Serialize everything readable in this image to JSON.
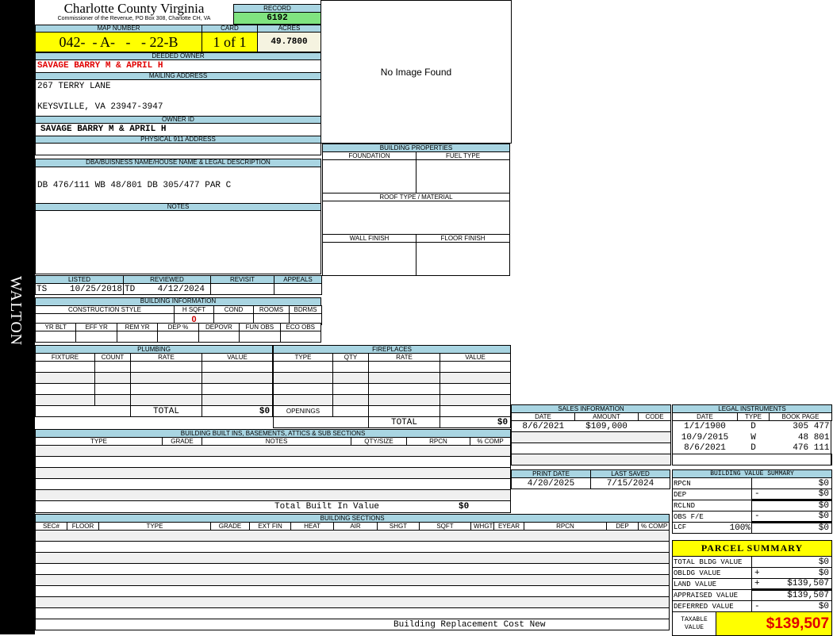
{
  "side_label": "WALTON",
  "header": {
    "title": "Charlotte County Virginia",
    "subtitle": "Commissioner of the Revenue, PO Box 308, Charlotte CH, VA",
    "record_label": "RECORD",
    "record": "6192"
  },
  "parcel": {
    "map_label": "MAP NUMBER",
    "map": "042-  - A-   -   - 22-B",
    "card_label": "CARD",
    "card": "1 of 1",
    "acres_label": "ACRES",
    "acres": "49.7800"
  },
  "owner": {
    "deeded_label": "DEEDED OWNER",
    "deeded": "SAVAGE BARRY M & APRIL H",
    "mailing_label": "MAILING ADDRESS",
    "mailing_line1": "267 TERRY LANE",
    "mailing_line2": "KEYSVILLE, VA 23947-3947",
    "owner_id_label": "OWNER ID",
    "owner_id": "SAVAGE BARRY M & APRIL H",
    "physical_label": "PHYSICAL 911 ADDRESS",
    "physical": ""
  },
  "dba": {
    "label": "DBA/BUISNESS NAME/HOUSE NAME & LEGAL DESCRIPTION",
    "value": "DB 476/111 WB 48/801 DB 305/477 PAR C"
  },
  "notes": {
    "label": "NOTES",
    "value": ""
  },
  "image": {
    "text": "No Image Found"
  },
  "review": {
    "listed_label": "LISTED",
    "listed_by": "TS",
    "listed": "10/25/2018",
    "reviewed_label": "REVIEWED",
    "reviewed_by": "TD",
    "reviewed": "4/12/2024",
    "revisit_label": "REVISIT",
    "appeals_label": "APPEALS"
  },
  "building_info": {
    "label": "BUILDING INFORMATION",
    "h1": [
      "CONSTRUCTION STYLE",
      "H SQFT",
      "COND",
      "ROOMS",
      "BDRMS"
    ],
    "hsqft": "0",
    "h2": [
      "YR BLT",
      "EFF YR",
      "REM YR",
      "DEP %",
      "DEPOVR",
      "FUN OBS",
      "ECO OBS"
    ]
  },
  "building_properties": {
    "label": "BUILDING PROPERTIES",
    "foundation": "FOUNDATION",
    "fuel": "FUEL TYPE",
    "roof": "ROOF TYPE / MATERIAL",
    "wall": "WALL FINISH",
    "floor": "FLOOR FINISH"
  },
  "plumbing": {
    "label": "PLUMBING",
    "cols": [
      "FIXTURE",
      "COUNT",
      "RATE",
      "VALUE"
    ],
    "total_label": "TOTAL",
    "total": "$0"
  },
  "fireplaces": {
    "label": "FIREPLACES",
    "cols": [
      "TYPE",
      "QTY",
      "RATE",
      "VALUE"
    ],
    "openings_label": "OPENINGS",
    "total_label": "TOTAL",
    "total": "$0"
  },
  "built_ins": {
    "label": "BUILDING BUILT INS, BASEMENTS, ATTICS & SUB SECTIONS",
    "cols": [
      "TYPE",
      "GRADE",
      "NOTES",
      "QTY/SIZE",
      "RPCN",
      "% COMP"
    ],
    "total_label": "Total Built In Value",
    "total": "$0"
  },
  "sections": {
    "label": "BUILDING SECTIONS",
    "cols": [
      "SEC#",
      "FLOOR",
      "TYPE",
      "GRADE",
      "EXT FIN",
      "HEAT",
      "AIR",
      "SHGT",
      "SQFT",
      "WHGT",
      "EYEAR",
      "RPCN",
      "DEP",
      "% COMP"
    ],
    "footer": "Building Replacement Cost New"
  },
  "sales": {
    "label": "SALES INFORMATION",
    "cols": [
      "DATE",
      "AMOUNT",
      "CODE"
    ],
    "rows": [
      {
        "date": "8/6/2021",
        "amount": "$109,000",
        "code": ""
      }
    ]
  },
  "legal": {
    "label": "LEGAL INSTRUMENTS",
    "cols": [
      "DATE",
      "TYPE",
      "BOOK PAGE"
    ],
    "rows": [
      {
        "date": "1/1/1900",
        "type": "D",
        "book": "305",
        "page": "477"
      },
      {
        "date": "10/9/2015",
        "type": "W",
        "book": "48",
        "page": "801"
      },
      {
        "date": "8/6/2021",
        "type": "D",
        "book": "476",
        "page": "111"
      }
    ]
  },
  "dates": {
    "print_label": "PRINT DATE",
    "print": "4/20/2025",
    "saved_label": "LAST SAVED",
    "saved": "7/15/2024"
  },
  "bvs": {
    "label": "BUILDING VALUE SUMMARY",
    "rows": [
      {
        "name": "RPCN",
        "sign": "",
        "value": "$0"
      },
      {
        "name": "DEP",
        "sign": "-",
        "value": "$0"
      },
      {
        "name": "RCLND",
        "sign": "",
        "value": "$0"
      },
      {
        "name": "OBS F/E",
        "sign": "-",
        "value": "$0"
      },
      {
        "name": "LCF",
        "pct": "100%",
        "sign": "",
        "value": "$0"
      }
    ]
  },
  "summary": {
    "label": "PARCEL SUMMARY",
    "rows": [
      {
        "name": "TOTAL BLDG VALUE",
        "sign": "",
        "value": "$0"
      },
      {
        "name": "OBLDG VALUE",
        "sign": "+",
        "value": "$0"
      },
      {
        "name": "LAND VALUE",
        "sign": "+",
        "value": "$139,507"
      },
      {
        "name": "APPRAISED VALUE",
        "sign": "",
        "value": "$139,507"
      },
      {
        "name": "DEFERRED VALUE",
        "sign": "-",
        "value": "$0"
      }
    ],
    "taxable_label": "TAXABLE VALUE",
    "taxable": "$139,507"
  },
  "colors": {
    "label_bg": "#a9d5e2",
    "yellow": "#ffff00",
    "green": "#80e480",
    "red": "#e00000"
  }
}
